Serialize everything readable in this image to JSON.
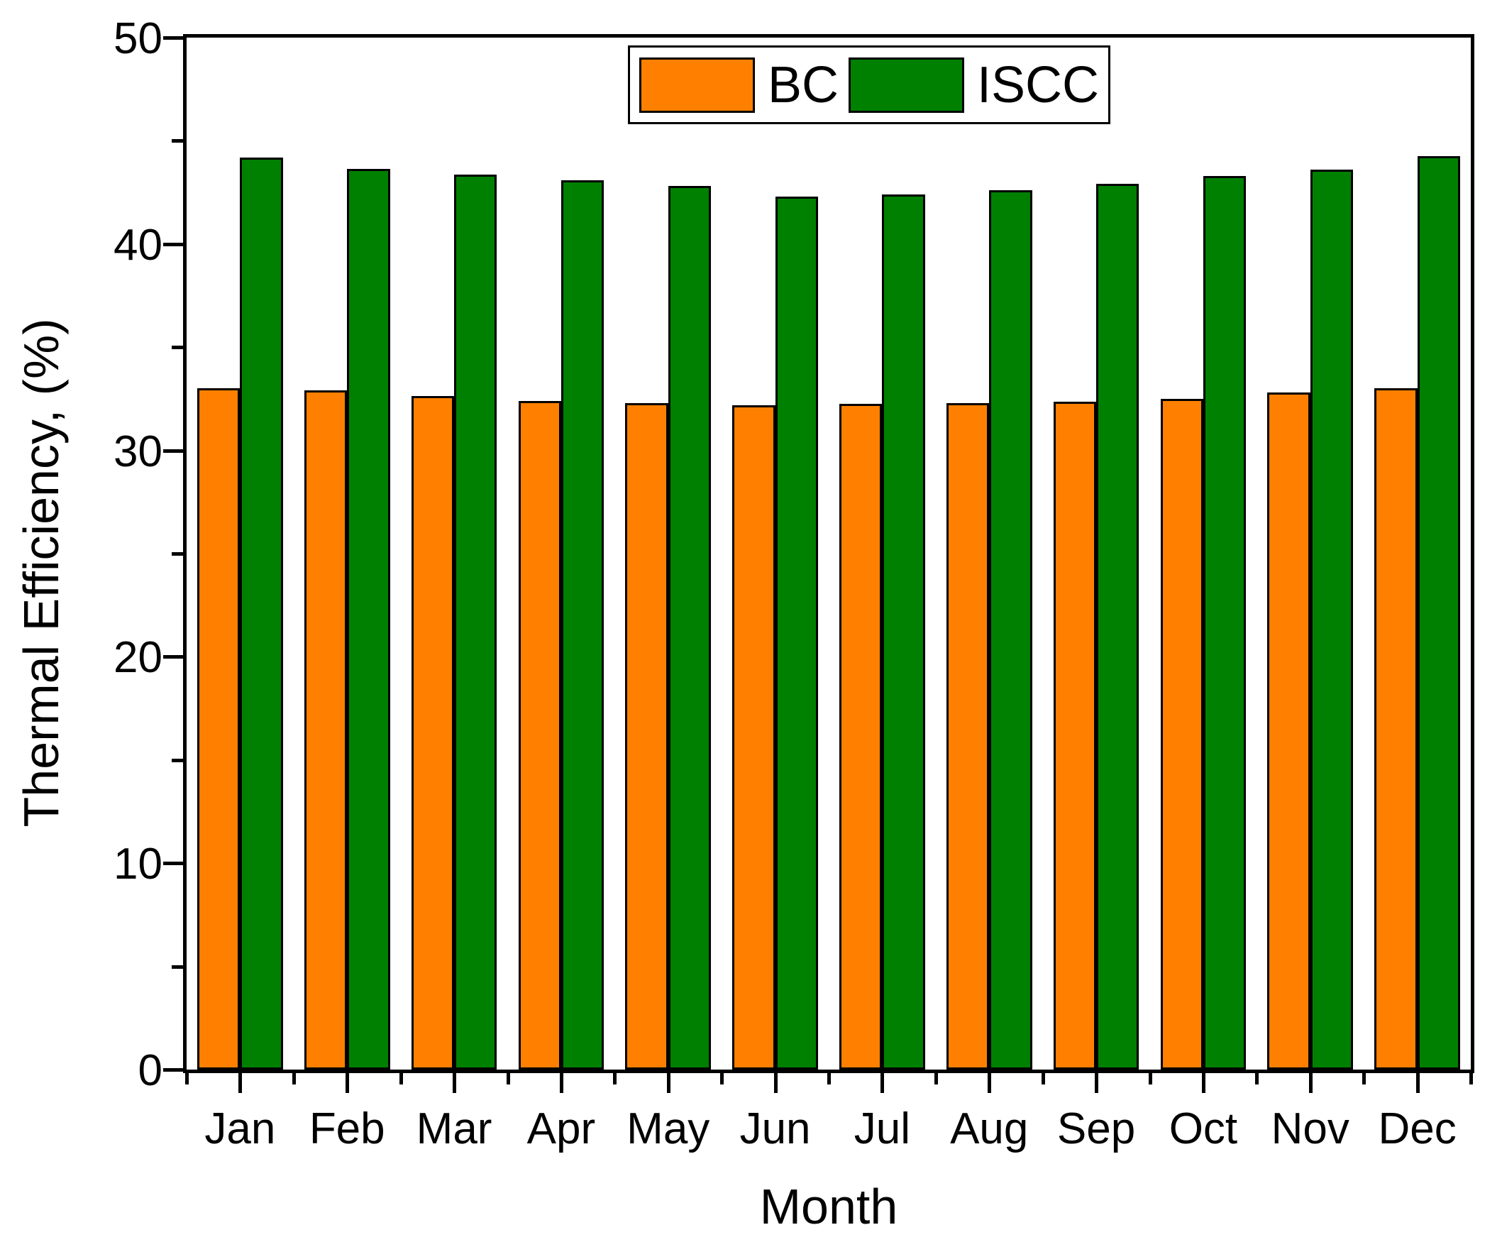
{
  "figure": {
    "background": "#ffffff",
    "axis_color": "#000000"
  },
  "chart_data": {
    "type": "bar",
    "title": "",
    "xlabel": "Month",
    "ylabel": "Thermal Efficiency, (%)",
    "categories": [
      "Jan",
      "Feb",
      "Mar",
      "Apr",
      "May",
      "Jun",
      "Jul",
      "Aug",
      "Sep",
      "Oct",
      "Nov",
      "Dec"
    ],
    "series": [
      {
        "name": "BC",
        "color": "#FF8000",
        "values": [
          33.0,
          32.9,
          32.65,
          32.4,
          32.3,
          32.2,
          32.25,
          32.3,
          32.35,
          32.5,
          32.8,
          33.0
        ]
      },
      {
        "name": "ISCC",
        "color": "#008000",
        "values": [
          44.2,
          43.65,
          43.35,
          43.1,
          42.8,
          42.3,
          42.4,
          42.6,
          42.9,
          43.3,
          43.6,
          44.25
        ]
      }
    ],
    "ylim": [
      0,
      50
    ],
    "yticks_major": [
      0,
      10,
      20,
      30,
      40,
      50
    ],
    "yticks_minor": [
      5,
      15,
      25,
      35,
      45
    ],
    "bar_edge_color": "#000000",
    "grid": "off",
    "legend_position": "top-center-inside"
  },
  "legend": {
    "items": [
      {
        "label": "BC",
        "color": "#FF8000"
      },
      {
        "label": "ISCC",
        "color": "#008000"
      }
    ]
  }
}
